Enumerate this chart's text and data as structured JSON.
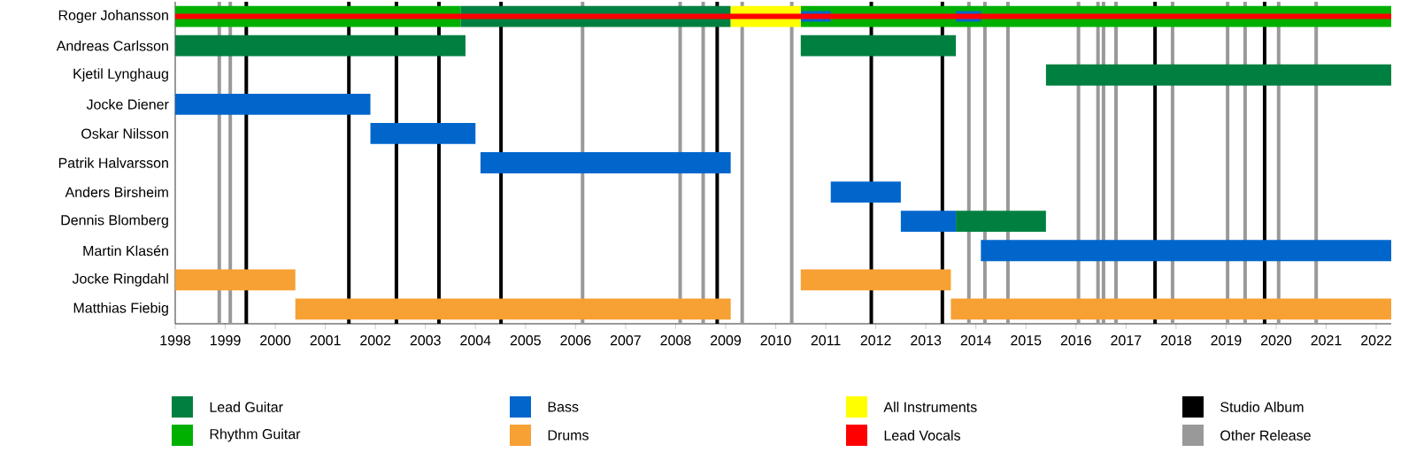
{
  "chart_data": {
    "type": "bar",
    "orientation": "horizontal",
    "legend": "bottom",
    "categories": [
      "Roger Johansson",
      "Andreas Carlsson",
      "Kjetil Lynghaug",
      "Jocke Diener",
      "Oskar Nilsson",
      "Patrik Halvarsson",
      "Anders Birsheim",
      "Dennis Blomberg",
      "Martin Klasén",
      "Jocke Ringdahl",
      "Matthias Fiebig"
    ],
    "xlim": [
      1998,
      2022.3
    ],
    "xticks": [
      1998,
      1999,
      2000,
      2001,
      2002,
      2003,
      2004,
      2005,
      2006,
      2007,
      2008,
      2009,
      2010,
      2011,
      2012,
      2013,
      2014,
      2015,
      2016,
      2017,
      2018,
      2019,
      2020,
      2021,
      2022
    ],
    "series": [
      {
        "name": "Lead Guitar",
        "color": "#008040",
        "values": [
          5.4,
          5.8,
          6.9,
          null,
          null,
          null,
          null,
          1.8,
          null,
          null,
          null
        ],
        "base": [
          2003.7,
          1998,
          2015.4,
          null,
          null,
          null,
          null,
          2013.6,
          null,
          null,
          null
        ]
      },
      {
        "color": "#008040",
        "values": [
          null,
          3.1,
          null,
          null,
          null,
          null,
          null,
          null,
          null,
          null,
          null
        ],
        "base": [
          null,
          2010.5,
          null,
          null,
          null,
          null,
          null,
          null,
          null,
          null,
          null
        ]
      },
      {
        "name": "Rhythm Guitar",
        "color": "#00b000",
        "values": [
          5.7,
          null,
          null,
          null,
          null,
          null,
          null,
          null,
          null,
          null,
          null
        ],
        "base": [
          1998,
          null,
          null,
          null,
          null,
          null,
          null,
          null,
          null,
          null,
          null
        ]
      },
      {
        "color": "#00b000",
        "values": [
          11.8,
          null,
          null,
          null,
          null,
          null,
          null,
          null,
          null,
          null,
          null
        ],
        "base": [
          2010.5,
          null,
          null,
          null,
          null,
          null,
          null,
          null,
          null,
          null,
          null
        ]
      },
      {
        "name": "Bass",
        "color": "#0066cc",
        "values": [
          0.6,
          null,
          null,
          3.9,
          2.1,
          5.0,
          1.4,
          1.1,
          8.2,
          null,
          null
        ],
        "base": [
          2010.5,
          null,
          null,
          1998,
          2001.9,
          2004.1,
          2011.1,
          2012.5,
          2014.1,
          null,
          null
        ]
      },
      {
        "color": "#0066cc",
        "values": [
          0.5,
          null,
          null,
          null,
          null,
          null,
          null,
          null,
          null,
          null,
          null
        ],
        "base": [
          2013.6,
          null,
          null,
          null,
          null,
          null,
          null,
          null,
          null,
          null,
          null
        ]
      },
      {
        "name": "Drums",
        "color": "#f7a033",
        "values": [
          null,
          null,
          null,
          null,
          null,
          null,
          null,
          null,
          null,
          2.4,
          8.7
        ],
        "base": [
          null,
          null,
          null,
          null,
          null,
          null,
          null,
          null,
          null,
          1998,
          2000.4
        ]
      },
      {
        "color": "#f7a033",
        "values": [
          null,
          null,
          null,
          null,
          null,
          null,
          null,
          null,
          null,
          3.0,
          8.8
        ],
        "base": [
          null,
          null,
          null,
          null,
          null,
          null,
          null,
          null,
          null,
          2010.5,
          2013.5
        ]
      },
      {
        "name": "All Instruments",
        "color": "#ffff00",
        "values": [
          1.4,
          null,
          null,
          null,
          null,
          null,
          null,
          null,
          null,
          null,
          null
        ],
        "base": [
          2009.1,
          null,
          null,
          null,
          null,
          null,
          null,
          null,
          null,
          null,
          null
        ]
      },
      {
        "name": "Lead Vocals",
        "color": "#ff0000",
        "values": [
          24.3,
          null,
          null,
          null,
          null,
          null,
          null,
          null,
          null,
          null,
          null
        ],
        "base": [
          1998,
          null,
          null,
          null,
          null,
          null,
          null,
          null,
          null,
          null,
          null
        ]
      }
    ],
    "ref_lines": [
      {
        "axis": "x",
        "value": 1999.42,
        "color": "#000000",
        "label": "Studio Album"
      },
      {
        "axis": "x",
        "value": 2001.47,
        "color": "#000000"
      },
      {
        "axis": "x",
        "value": 2002.42,
        "color": "#000000"
      },
      {
        "axis": "x",
        "value": 2003.27,
        "color": "#000000"
      },
      {
        "axis": "x",
        "value": 2004.51,
        "color": "#000000"
      },
      {
        "axis": "x",
        "value": 2008.83,
        "color": "#000000"
      },
      {
        "axis": "x",
        "value": 2011.91,
        "color": "#000000"
      },
      {
        "axis": "x",
        "value": 2013.33,
        "color": "#000000"
      },
      {
        "axis": "x",
        "value": 2017.58,
        "color": "#000000"
      },
      {
        "axis": "x",
        "value": 2019.77,
        "color": "#000000"
      },
      {
        "axis": "x",
        "value": 1998.88,
        "color": "#999999",
        "label": "Other Release"
      },
      {
        "axis": "x",
        "value": 1999.1,
        "color": "#999999"
      },
      {
        "axis": "x",
        "value": 2006.14,
        "color": "#999999"
      },
      {
        "axis": "x",
        "value": 2008.09,
        "color": "#999999"
      },
      {
        "axis": "x",
        "value": 2008.55,
        "color": "#999999"
      },
      {
        "axis": "x",
        "value": 2009.33,
        "color": "#999999"
      },
      {
        "axis": "x",
        "value": 2010.32,
        "color": "#999999"
      },
      {
        "axis": "x",
        "value": 2013.86,
        "color": "#999999"
      },
      {
        "axis": "x",
        "value": 2014.18,
        "color": "#999999"
      },
      {
        "axis": "x",
        "value": 2014.64,
        "color": "#999999"
      },
      {
        "axis": "x",
        "value": 2016.05,
        "color": "#999999"
      },
      {
        "axis": "x",
        "value": 2016.44,
        "color": "#999999"
      },
      {
        "axis": "x",
        "value": 2016.55,
        "color": "#999999"
      },
      {
        "axis": "x",
        "value": 2016.8,
        "color": "#999999"
      },
      {
        "axis": "x",
        "value": 2017.93,
        "color": "#999999"
      },
      {
        "axis": "x",
        "value": 2019.03,
        "color": "#999999"
      },
      {
        "axis": "x",
        "value": 2019.38,
        "color": "#999999"
      },
      {
        "axis": "x",
        "value": 2020.05,
        "color": "#999999"
      },
      {
        "axis": "x",
        "value": 2020.8,
        "color": "#999999"
      }
    ]
  }
}
